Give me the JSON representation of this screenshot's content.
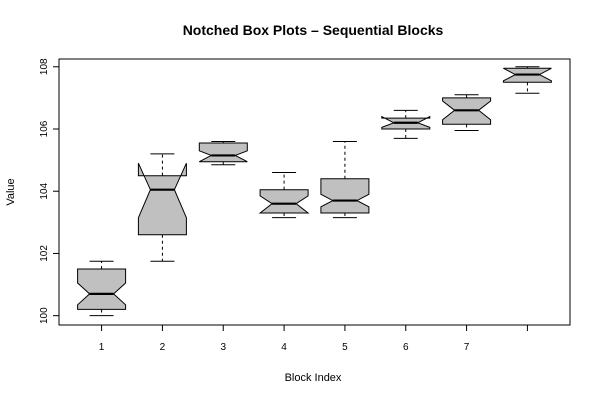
{
  "chart_data": {
    "type": "boxplot",
    "title": "Notched Box Plots – Sequential Blocks",
    "xlabel": "Block Index",
    "ylabel": "Value",
    "ylim": [
      99.7,
      108.25
    ],
    "xlim": [
      0.3,
      8.7
    ],
    "yticks": [
      100,
      102,
      104,
      106,
      108
    ],
    "box_fill": "#c0c0c0",
    "boxes": [
      {
        "label": "1",
        "x": 1,
        "whisker_low": 100.0,
        "q1": 100.2,
        "notch_low": 100.35,
        "median": 100.7,
        "notch_high": 101.05,
        "q3": 101.5,
        "whisker_high": 101.75
      },
      {
        "label": "2",
        "x": 2,
        "whisker_low": 101.75,
        "q1": 102.6,
        "notch_low": 103.15,
        "median": 104.05,
        "notch_high": 104.9,
        "q3": 104.5,
        "whisker_high": 105.2
      },
      {
        "label": "3",
        "x": 3,
        "whisker_low": 104.85,
        "q1": 104.95,
        "notch_low": 104.95,
        "median": 105.15,
        "notch_high": 105.3,
        "q3": 105.55,
        "whisker_high": 105.6
      },
      {
        "label": "4",
        "x": 4,
        "whisker_low": 103.15,
        "q1": 103.3,
        "notch_low": 103.3,
        "median": 103.6,
        "notch_high": 103.85,
        "q3": 104.05,
        "whisker_high": 104.6
      },
      {
        "label": "5",
        "x": 5,
        "whisker_low": 103.15,
        "q1": 103.3,
        "notch_low": 103.5,
        "median": 103.7,
        "notch_high": 103.9,
        "q3": 104.4,
        "whisker_high": 105.6
      },
      {
        "label": "6",
        "x": 6,
        "whisker_low": 105.7,
        "q1": 106.0,
        "notch_low": 106.05,
        "median": 106.2,
        "notch_high": 106.4,
        "q3": 106.35,
        "whisker_high": 106.6
      },
      {
        "label": "7",
        "x": 7,
        "whisker_low": 105.95,
        "q1": 106.15,
        "notch_low": 106.3,
        "median": 106.6,
        "notch_high": 106.9,
        "q3": 107.0,
        "whisker_high": 107.1
      },
      {
        "label": "",
        "x": 8,
        "whisker_low": 107.15,
        "q1": 107.5,
        "notch_low": 107.55,
        "median": 107.75,
        "notch_high": 107.95,
        "q3": 107.95,
        "whisker_high": 108.0
      }
    ]
  }
}
